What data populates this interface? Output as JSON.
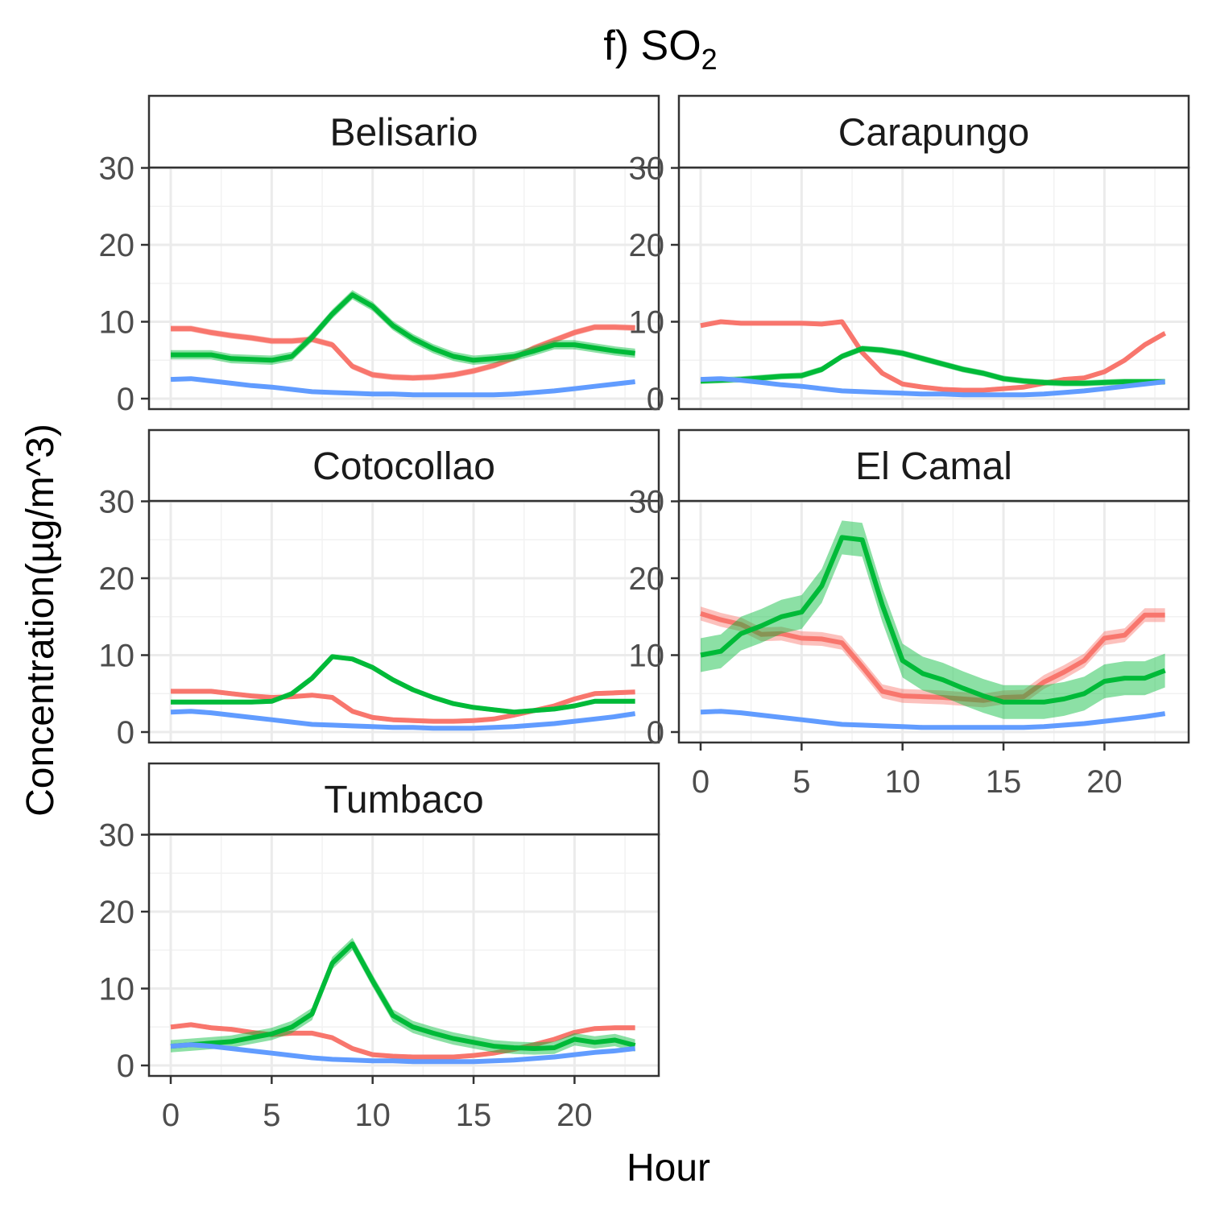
{
  "chart_data": {
    "type": "line",
    "title": "f) SO",
    "title_subscript": "2",
    "xlabel": "Hour",
    "ylabel": "Concentration(µg/m^3)",
    "xlim": [
      0,
      23
    ],
    "ylim": [
      0,
      30
    ],
    "x_ticks": [
      0,
      5,
      10,
      15,
      20
    ],
    "y_ticks": [
      0,
      10,
      20,
      30
    ],
    "grid": true,
    "legend": "none",
    "series_colors": [
      "#f8766d",
      "#00ba38",
      "#619cff"
    ],
    "x": [
      0,
      1,
      2,
      3,
      4,
      5,
      6,
      7,
      8,
      9,
      10,
      11,
      12,
      13,
      14,
      15,
      16,
      17,
      18,
      19,
      20,
      21,
      22,
      23
    ],
    "panels": [
      {
        "station": "Belisario",
        "series": [
          {
            "color": "#f8766d",
            "values": [
              9.1,
              9.1,
              8.6,
              8.2,
              7.9,
              7.5,
              7.5,
              7.7,
              7.0,
              4.2,
              3.1,
              2.8,
              2.7,
              2.8,
              3.1,
              3.6,
              4.3,
              5.3,
              6.6,
              7.6,
              8.6,
              9.3,
              9.3,
              9.2
            ],
            "band": 0.4
          },
          {
            "color": "#00ba38",
            "values": [
              5.7,
              5.7,
              5.7,
              5.2,
              5.1,
              5.0,
              5.5,
              8.0,
              11.0,
              13.5,
              12.0,
              9.5,
              7.8,
              6.5,
              5.5,
              5.0,
              5.2,
              5.5,
              6.2,
              7.0,
              7.0,
              6.6,
              6.2,
              5.9
            ],
            "band": 0.6
          },
          {
            "color": "#619cff",
            "values": [
              2.5,
              2.6,
              2.3,
              2.0,
              1.7,
              1.5,
              1.2,
              0.9,
              0.8,
              0.7,
              0.6,
              0.6,
              0.5,
              0.5,
              0.5,
              0.5,
              0.5,
              0.6,
              0.8,
              1.0,
              1.3,
              1.6,
              1.9,
              2.2
            ],
            "band": 0.15
          }
        ]
      },
      {
        "station": "Carapungo",
        "series": [
          {
            "color": "#f8766d",
            "values": [
              9.5,
              10.0,
              9.8,
              9.8,
              9.8,
              9.8,
              9.7,
              10.0,
              6.0,
              3.3,
              1.9,
              1.5,
              1.2,
              1.1,
              1.1,
              1.3,
              1.5,
              2.0,
              2.5,
              2.7,
              3.5,
              5.0,
              7.0,
              8.5
            ],
            "band": 0.3
          },
          {
            "color": "#00ba38",
            "values": [
              2.3,
              2.4,
              2.5,
              2.7,
              2.9,
              3.0,
              3.8,
              5.5,
              6.5,
              6.3,
              5.9,
              5.2,
              4.5,
              3.8,
              3.3,
              2.6,
              2.3,
              2.1,
              2.0,
              2.0,
              2.1,
              2.2,
              2.2,
              2.2
            ],
            "band": 0.4
          },
          {
            "color": "#619cff",
            "values": [
              2.5,
              2.6,
              2.4,
              2.1,
              1.8,
              1.6,
              1.3,
              1.0,
              0.9,
              0.8,
              0.7,
              0.6,
              0.6,
              0.5,
              0.5,
              0.5,
              0.5,
              0.6,
              0.8,
              1.0,
              1.3,
              1.6,
              1.9,
              2.2
            ],
            "band": 0.15
          }
        ]
      },
      {
        "station": "Cotocollao",
        "series": [
          {
            "color": "#f8766d",
            "values": [
              5.3,
              5.3,
              5.3,
              5.0,
              4.7,
              4.5,
              4.6,
              4.8,
              4.5,
              2.7,
              1.9,
              1.6,
              1.5,
              1.4,
              1.4,
              1.5,
              1.7,
              2.2,
              2.8,
              3.4,
              4.3,
              5.0,
              5.1,
              5.2
            ],
            "band": 0.3
          },
          {
            "color": "#00ba38",
            "values": [
              3.9,
              3.9,
              3.9,
              3.9,
              3.9,
              4.0,
              5.0,
              7.0,
              9.8,
              9.5,
              8.4,
              6.8,
              5.5,
              4.5,
              3.7,
              3.2,
              2.9,
              2.6,
              2.8,
              3.0,
              3.4,
              4.0,
              4.0,
              4.0
            ],
            "band": 0.3
          },
          {
            "color": "#619cff",
            "values": [
              2.6,
              2.7,
              2.5,
              2.2,
              1.9,
              1.6,
              1.3,
              1.0,
              0.9,
              0.8,
              0.7,
              0.6,
              0.6,
              0.5,
              0.5,
              0.5,
              0.6,
              0.7,
              0.9,
              1.1,
              1.4,
              1.7,
              2.0,
              2.4
            ],
            "band": 0.15
          }
        ]
      },
      {
        "station": "El Camal",
        "series": [
          {
            "color": "#f8766d",
            "values": [
              15.4,
              14.6,
              14.0,
              12.7,
              12.8,
              12.2,
              12.1,
              11.6,
              8.5,
              5.3,
              4.7,
              4.6,
              4.5,
              4.3,
              4.1,
              4.5,
              4.6,
              6.5,
              7.8,
              9.3,
              12.2,
              12.6,
              15.2,
              15.2
            ],
            "band": 0.9
          },
          {
            "color": "#00ba38",
            "values": [
              10.0,
              10.5,
              12.8,
              13.8,
              15.0,
              15.6,
              19.0,
              25.3,
              25.0,
              16.5,
              9.3,
              7.6,
              6.8,
              5.7,
              4.7,
              3.9,
              3.9,
              3.9,
              4.3,
              5.0,
              6.6,
              7.0,
              7.0,
              8.0
            ],
            "band": 2.2
          },
          {
            "color": "#619cff",
            "values": [
              2.6,
              2.7,
              2.5,
              2.2,
              1.9,
              1.6,
              1.3,
              1.0,
              0.9,
              0.8,
              0.7,
              0.6,
              0.6,
              0.6,
              0.6,
              0.6,
              0.6,
              0.7,
              0.9,
              1.1,
              1.4,
              1.7,
              2.0,
              2.4
            ],
            "band": 0.15
          }
        ]
      },
      {
        "station": "Tumbaco",
        "series": [
          {
            "color": "#f8766d",
            "values": [
              5.0,
              5.3,
              4.9,
              4.7,
              4.3,
              4.0,
              4.2,
              4.2,
              3.6,
              2.2,
              1.4,
              1.2,
              1.1,
              1.1,
              1.1,
              1.3,
              1.6,
              2.1,
              2.7,
              3.4,
              4.3,
              4.8,
              4.9,
              4.9
            ],
            "band": 0.3
          },
          {
            "color": "#00ba38",
            "values": [
              2.5,
              2.7,
              2.9,
              3.1,
              3.6,
              4.1,
              5.0,
              6.7,
              13.3,
              15.8,
              11.0,
              6.5,
              5.0,
              4.2,
              3.5,
              3.0,
              2.5,
              2.3,
              2.2,
              2.3,
              3.4,
              3.0,
              3.3,
              2.6
            ],
            "band": 0.8
          },
          {
            "color": "#619cff",
            "values": [
              2.5,
              2.7,
              2.5,
              2.2,
              1.9,
              1.6,
              1.3,
              1.0,
              0.8,
              0.7,
              0.6,
              0.6,
              0.5,
              0.5,
              0.5,
              0.5,
              0.6,
              0.7,
              0.9,
              1.1,
              1.4,
              1.7,
              1.9,
              2.2
            ],
            "band": 0.15
          }
        ]
      }
    ]
  }
}
